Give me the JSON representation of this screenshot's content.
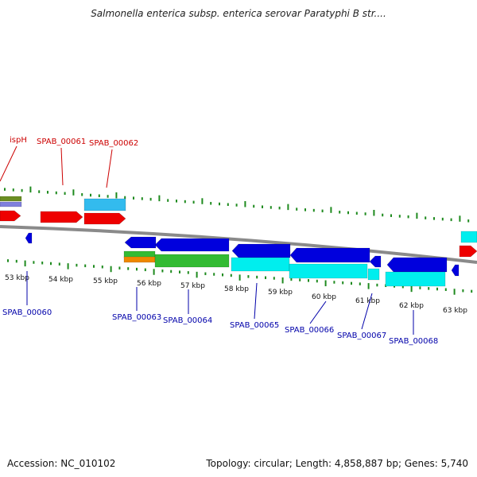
{
  "header": {
    "title": "Salmonella enterica subsp. enterica serovar Paratyphi B str...."
  },
  "footer": {
    "accession": "Accession: NC_010102",
    "summary": "Topology: circular; Length: 4,858,887 bp; Genes: 5,740"
  },
  "colors": {
    "background": "#ffffff",
    "backbone": "#8a8a8a",
    "tick": "#1e8a1e",
    "label_forward": "#cc0000",
    "label_reverse": "#0000aa",
    "gene_red": "#ee0000",
    "gene_lightblue": "#33bbee",
    "gene_cyan": "#00eeee",
    "gene_blue": "#0000dd",
    "gene_green": "#33bb33",
    "gene_olive": "#6b8e23",
    "gene_orange": "#ee8800",
    "gene_lavender": "#8080dd"
  },
  "kbp_labels": [
    "53 kbp",
    "54 kbp",
    "55 kbp",
    "56 kbp",
    "57 kbp",
    "58 kbp",
    "59 kbp",
    "60 kbp",
    "61 kbp",
    "62 kbp",
    "63 kbp"
  ],
  "gene_labels_forward": [
    "ispH",
    "SPAB_00061",
    "SPAB_00062"
  ],
  "gene_labels_reverse": [
    "SPAB_00060",
    "SPAB_00063",
    "SPAB_00064",
    "SPAB_00065",
    "SPAB_00066",
    "SPAB_00067",
    "SPAB_00068"
  ]
}
